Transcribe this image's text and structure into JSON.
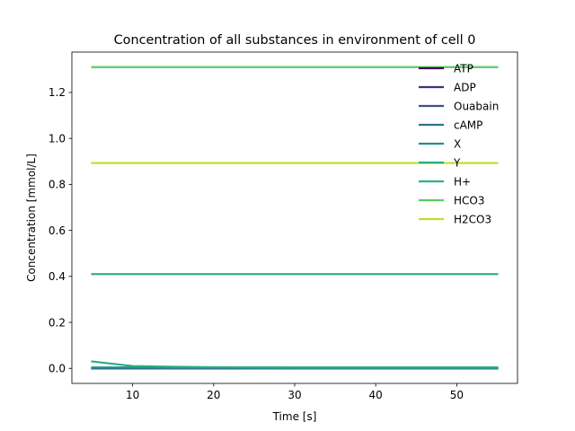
{
  "chart_data": {
    "type": "line",
    "title": "Concentration of all substances in environment of cell 0",
    "xlabel": "Time [s]",
    "ylabel": "Concentration [mmol/L]",
    "xlim": [
      2.5,
      57.5
    ],
    "ylim": [
      -0.0655,
      1.3755
    ],
    "xticks": [
      10,
      20,
      30,
      40,
      50
    ],
    "xtick_labels": [
      "10",
      "20",
      "30",
      "40",
      "50"
    ],
    "yticks": [
      0.0,
      0.2,
      0.4,
      0.6,
      0.8,
      1.0,
      1.2
    ],
    "ytick_labels": [
      "0.0",
      "0.2",
      "0.4",
      "0.6",
      "0.8",
      "1.0",
      "1.2"
    ],
    "grid": false,
    "legend_position": "top-right",
    "x": [
      5,
      10,
      15,
      20,
      25,
      30,
      35,
      40,
      45,
      50,
      55
    ],
    "series": [
      {
        "name": "ATP",
        "color": "#440154",
        "values": [
          0,
          0,
          0,
          0,
          0,
          0,
          0,
          0,
          0,
          0,
          0
        ]
      },
      {
        "name": "ADP",
        "color": "#472c7a",
        "values": [
          0,
          0,
          0,
          0,
          0,
          0,
          0,
          0,
          0,
          0,
          0
        ]
      },
      {
        "name": "Ouabain",
        "color": "#3b518b",
        "values": [
          0,
          0,
          0,
          0,
          0,
          0,
          0,
          0,
          0,
          0,
          0
        ]
      },
      {
        "name": "cAMP",
        "color": "#2c718e",
        "values": [
          0,
          0,
          0,
          0,
          0,
          0,
          0,
          0,
          0,
          0,
          0
        ]
      },
      {
        "name": "X",
        "color": "#21908d",
        "values": [
          0.004,
          0.004,
          0.004,
          0.004,
          0.004,
          0.004,
          0.004,
          0.004,
          0.004,
          0.004,
          0.004
        ]
      },
      {
        "name": "Y",
        "color": "#27ad81",
        "values": [
          0.03,
          0.01,
          0.007,
          0.005,
          0.004,
          0.003,
          0.003,
          0.003,
          0.003,
          0.003,
          0.003
        ]
      },
      {
        "name": "H+",
        "color": "#2eb37c",
        "values": [
          0.41,
          0.41,
          0.41,
          0.41,
          0.41,
          0.41,
          0.41,
          0.41,
          0.41,
          0.41,
          0.41
        ]
      },
      {
        "name": "HCO3",
        "color": "#5ec962",
        "values": [
          1.31,
          1.31,
          1.31,
          1.31,
          1.31,
          1.31,
          1.31,
          1.31,
          1.31,
          1.31,
          1.31
        ]
      },
      {
        "name": "H2CO3",
        "color": "#bddf26",
        "values": [
          0.893,
          0.893,
          0.893,
          0.893,
          0.893,
          0.893,
          0.893,
          0.893,
          0.893,
          0.893,
          0.893
        ]
      }
    ]
  }
}
